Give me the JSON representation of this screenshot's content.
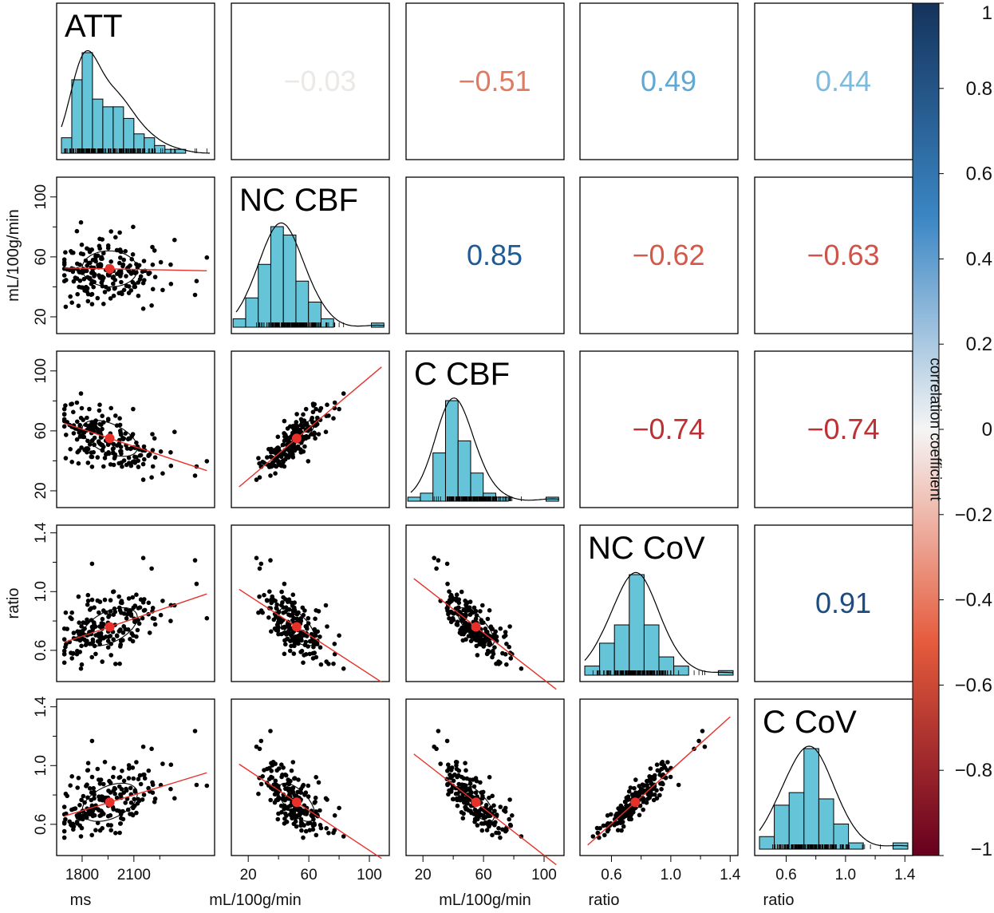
{
  "chart_data": {
    "type": "scatter",
    "title": "",
    "variables": [
      {
        "name": "ATT",
        "unit": "ms",
        "range": [
          1680,
          2540
        ],
        "ticks": [
          1800,
          2100
        ],
        "tick_labels": [
          "1800",
          "2100"
        ],
        "ylabel": ""
      },
      {
        "name": "NC CBF",
        "unit": "mL/100g/min",
        "range": [
          12,
          110
        ],
        "ticks": [
          20,
          60,
          100
        ],
        "tick_labels": [
          "20",
          "60",
          "100"
        ],
        "ylabel": "mL/100g/min"
      },
      {
        "name": "C CBF",
        "unit": "mL/100g/min",
        "range": [
          12,
          110
        ],
        "ticks": [
          20,
          60,
          100
        ],
        "tick_labels": [
          "20",
          "60",
          "100"
        ],
        "ylabel": ""
      },
      {
        "name": "NC CoV",
        "unit": "ratio",
        "range": [
          0.42,
          1.42
        ],
        "ticks": [
          0.6,
          1.0,
          1.4
        ],
        "tick_labels": [
          "0.6",
          "1.0",
          "1.4"
        ],
        "ylabel": "ratio"
      },
      {
        "name": "C CoV",
        "unit": "ratio",
        "range": [
          0.42,
          1.42
        ],
        "ticks": [
          0.6,
          1.0,
          1.4
        ],
        "tick_labels": [
          "0.6",
          "1.0",
          "1.4"
        ],
        "ylabel": ""
      }
    ],
    "means": [
      1960,
      52,
      55,
      0.76,
      0.75
    ],
    "sds": [
      160,
      12,
      12,
      0.13,
      0.13
    ],
    "correlations": [
      {
        "row": 1,
        "col": 2,
        "label": "−0.03",
        "value": -0.03,
        "color": "#ebe8e6"
      },
      {
        "row": 1,
        "col": 3,
        "label": "−0.51",
        "value": -0.51,
        "color": "#e07b62"
      },
      {
        "row": 1,
        "col": 4,
        "label": "0.49",
        "value": 0.49,
        "color": "#5fa8d3"
      },
      {
        "row": 1,
        "col": 5,
        "label": "0.44",
        "value": 0.44,
        "color": "#7dbadc"
      },
      {
        "row": 2,
        "col": 3,
        "label": "0.85",
        "value": 0.85,
        "color": "#1f5b96"
      },
      {
        "row": 2,
        "col": 4,
        "label": "−0.62",
        "value": -0.62,
        "color": "#d35a4b"
      },
      {
        "row": 2,
        "col": 5,
        "label": "−0.63",
        "value": -0.63,
        "color": "#d0534a"
      },
      {
        "row": 3,
        "col": 4,
        "label": "−0.74",
        "value": -0.74,
        "color": "#bd3135"
      },
      {
        "row": 3,
        "col": 5,
        "label": "−0.74",
        "value": -0.74,
        "color": "#bd3135"
      },
      {
        "row": 4,
        "col": 5,
        "label": "0.91",
        "value": 0.91,
        "color": "#1d4c82"
      }
    ],
    "histograms": [
      {
        "counts": [
          4,
          19,
          26,
          14,
          12,
          12,
          9,
          5,
          4,
          2,
          1,
          1,
          0
        ],
        "bin_start": 1680,
        "bin_width": 60
      },
      {
        "counts": [
          2,
          7,
          15,
          24,
          22,
          11,
          6,
          2,
          0,
          0,
          0,
          1
        ],
        "bin_start": 10,
        "bin_width": 8.3
      },
      {
        "counts": [
          1,
          2,
          12,
          25,
          15,
          7,
          2,
          1,
          0,
          0,
          0,
          1
        ],
        "bin_start": 10,
        "bin_width": 8.3
      },
      {
        "counts": [
          2,
          7,
          11,
          22,
          11,
          4,
          2,
          0,
          0,
          1
        ],
        "bin_start": 0.42,
        "bin_width": 0.1
      },
      {
        "counts": [
          2,
          7,
          9,
          16,
          8,
          4,
          1,
          0,
          0,
          1
        ],
        "bin_start": 0.42,
        "bin_width": 0.1
      }
    ],
    "colorbar": {
      "label": "correlation coefficient",
      "range": [
        -1,
        1
      ],
      "ticks": [
        1,
        0.8,
        0.6,
        0.4,
        0.2,
        0,
        -0.2,
        -0.4,
        -0.6,
        -0.8,
        -1
      ],
      "tick_labels": [
        "1",
        "0.8",
        "0.6",
        "0.4",
        "0.2",
        "0",
        "−0.2",
        "−0.4",
        "−0.6",
        "−0.8",
        "−1"
      ]
    },
    "colors": {
      "histogram_fill": "#66c4d8",
      "point": "#000000",
      "mean_point": "#e8302a",
      "fit_line": "#e8302a",
      "colorbar_top": "#15335c",
      "colorbar_mid": "#f5f5f5",
      "colorbar_bottom": "#67001f"
    },
    "n_points": 200
  }
}
